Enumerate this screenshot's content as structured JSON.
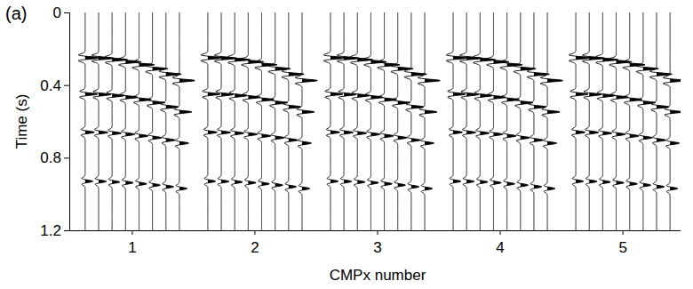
{
  "chart_data": {
    "type": "wiggle",
    "panel_label": "(a)",
    "y_label": "Time (s)",
    "x_label": "CMPx number",
    "ylim": [
      0,
      1.2
    ],
    "yticks": [
      0,
      0.4,
      0.8,
      1.2
    ],
    "categories": [
      "1",
      "2",
      "3",
      "4",
      "5"
    ],
    "gathers": [
      {
        "events": [
          {
            "amplitude": 1.0,
            "times": [
              0.25,
              0.252,
              0.26,
              0.272,
              0.288,
              0.31,
              0.34,
              0.375
            ]
          },
          {
            "amplitude": 0.8,
            "times": [
              0.45,
              0.452,
              0.458,
              0.467,
              0.48,
              0.497,
              0.52,
              0.548
            ]
          },
          {
            "amplitude": 0.6,
            "times": [
              0.66,
              0.661,
              0.665,
              0.671,
              0.68,
              0.69,
              0.703,
              0.72
            ]
          },
          {
            "amplitude": 0.5,
            "times": [
              0.93,
              0.931,
              0.934,
              0.938,
              0.944,
              0.951,
              0.96,
              0.97
            ]
          }
        ]
      },
      {
        "events": [
          {
            "amplitude": 1.0,
            "times": [
              0.25,
              0.252,
              0.26,
              0.272,
              0.288,
              0.31,
              0.34,
              0.375
            ]
          },
          {
            "amplitude": 0.8,
            "times": [
              0.45,
              0.452,
              0.458,
              0.467,
              0.48,
              0.497,
              0.52,
              0.548
            ]
          },
          {
            "amplitude": 0.6,
            "times": [
              0.66,
              0.661,
              0.665,
              0.671,
              0.68,
              0.69,
              0.703,
              0.72
            ]
          },
          {
            "amplitude": 0.5,
            "times": [
              0.93,
              0.931,
              0.934,
              0.938,
              0.944,
              0.951,
              0.96,
              0.97
            ]
          }
        ]
      },
      {
        "events": [
          {
            "amplitude": 1.0,
            "times": [
              0.25,
              0.252,
              0.26,
              0.272,
              0.288,
              0.31,
              0.34,
              0.375
            ]
          },
          {
            "amplitude": 0.8,
            "times": [
              0.45,
              0.452,
              0.458,
              0.467,
              0.48,
              0.497,
              0.52,
              0.548
            ]
          },
          {
            "amplitude": 0.6,
            "times": [
              0.66,
              0.661,
              0.665,
              0.671,
              0.68,
              0.69,
              0.703,
              0.72
            ]
          },
          {
            "amplitude": 0.5,
            "times": [
              0.93,
              0.931,
              0.934,
              0.938,
              0.944,
              0.951,
              0.96,
              0.97
            ]
          }
        ]
      },
      {
        "events": [
          {
            "amplitude": 1.0,
            "times": [
              0.25,
              0.252,
              0.26,
              0.272,
              0.288,
              0.31,
              0.34,
              0.375
            ]
          },
          {
            "amplitude": 0.8,
            "times": [
              0.45,
              0.452,
              0.458,
              0.467,
              0.48,
              0.497,
              0.52,
              0.548
            ]
          },
          {
            "amplitude": 0.6,
            "times": [
              0.66,
              0.661,
              0.665,
              0.671,
              0.68,
              0.69,
              0.703,
              0.72
            ]
          },
          {
            "amplitude": 0.5,
            "times": [
              0.93,
              0.931,
              0.934,
              0.938,
              0.944,
              0.951,
              0.96,
              0.97
            ]
          }
        ]
      },
      {
        "events": [
          {
            "amplitude": 1.0,
            "times": [
              0.25,
              0.252,
              0.26,
              0.272,
              0.288,
              0.31,
              0.34,
              0.375
            ]
          },
          {
            "amplitude": 0.8,
            "times": [
              0.45,
              0.452,
              0.458,
              0.467,
              0.48,
              0.497,
              0.52,
              0.548
            ]
          },
          {
            "amplitude": 0.6,
            "times": [
              0.66,
              0.661,
              0.665,
              0.671,
              0.68,
              0.69,
              0.703,
              0.72
            ]
          },
          {
            "amplitude": 0.5,
            "times": [
              0.93,
              0.931,
              0.934,
              0.938,
              0.944,
              0.951,
              0.96,
              0.97
            ]
          }
        ]
      }
    ]
  }
}
